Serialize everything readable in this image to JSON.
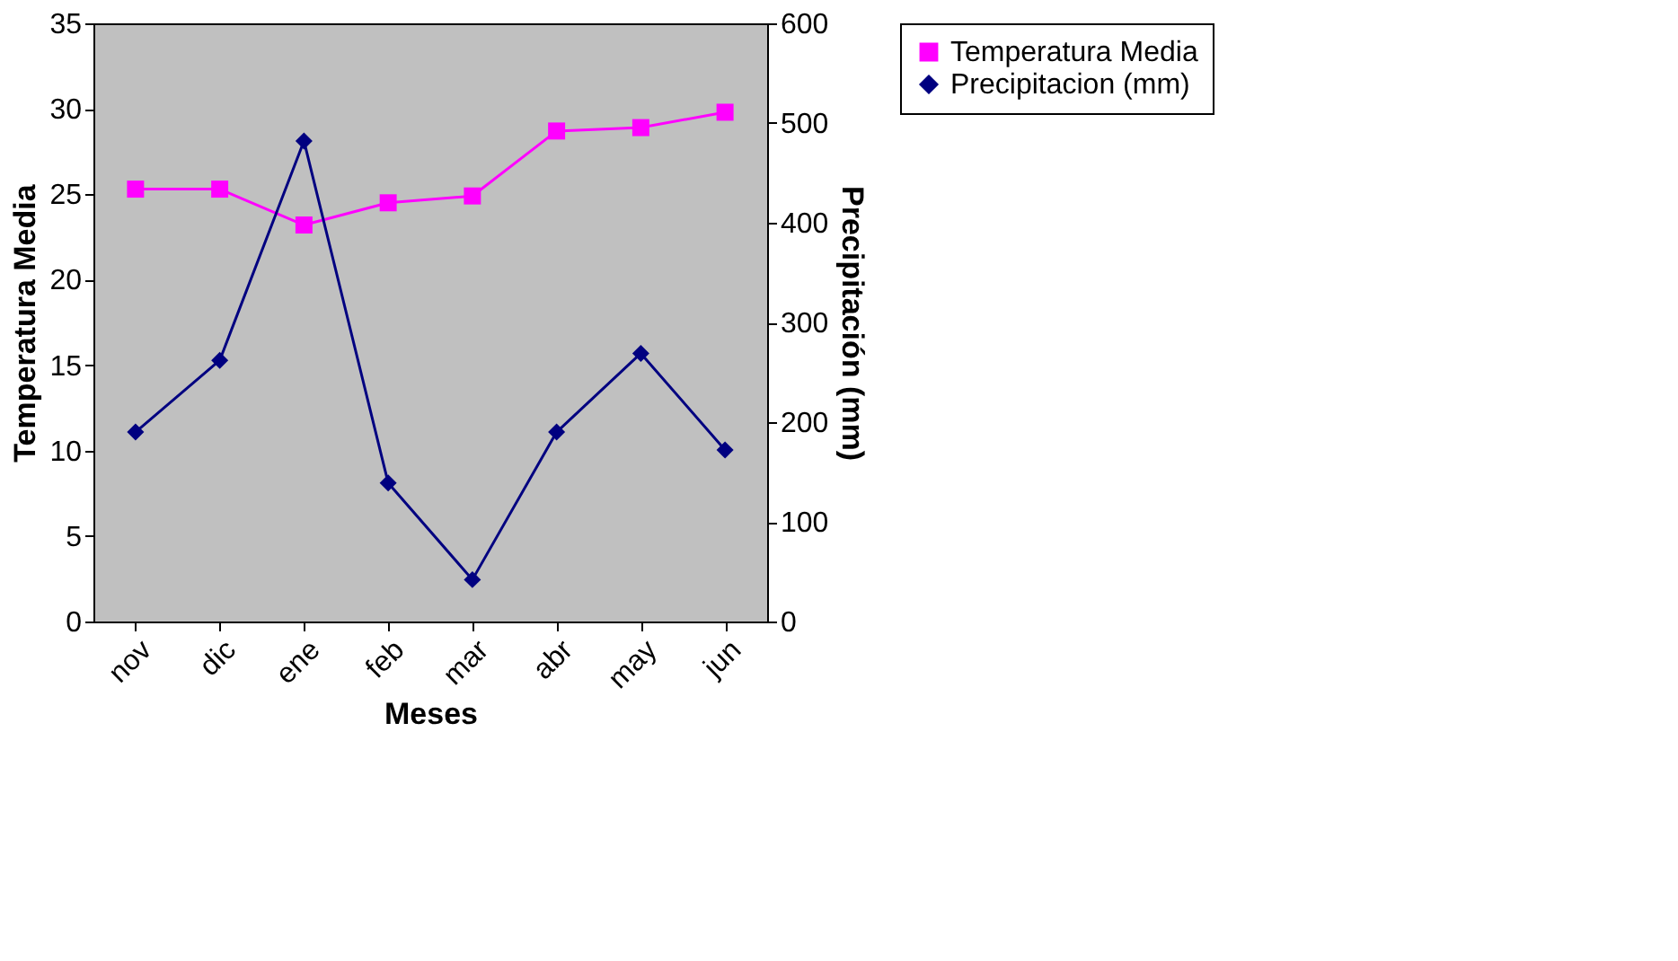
{
  "chart_data": {
    "type": "line",
    "xlabel": "Meses",
    "ylabel": "Temperatura Media",
    "y2label": "Precipitación (mm)",
    "categories": [
      "nov",
      "dic",
      "ene",
      "feb",
      "mar",
      "abr",
      "may",
      "jun"
    ],
    "series": [
      {
        "name": "Temperatura Media",
        "color": "#ff00ff",
        "marker": "square",
        "values": [
          25.3,
          25.3,
          23.2,
          24.5,
          24.9,
          28.7,
          28.9,
          29.8
        ]
      },
      {
        "name": "Precipitacion (mm)",
        "color": "#000080",
        "marker": "diamond",
        "axis": "y2",
        "values": [
          190,
          262,
          482,
          139,
          42,
          190,
          269,
          172
        ]
      }
    ],
    "ylim": [
      0,
      35
    ],
    "yticks": [
      0,
      5,
      10,
      15,
      20,
      25,
      30,
      35
    ],
    "y2lim": [
      0,
      600
    ],
    "y2ticks": [
      0,
      100,
      200,
      300,
      400,
      500,
      600
    ],
    "grid": false,
    "legend": "right",
    "line_style": "solid"
  }
}
